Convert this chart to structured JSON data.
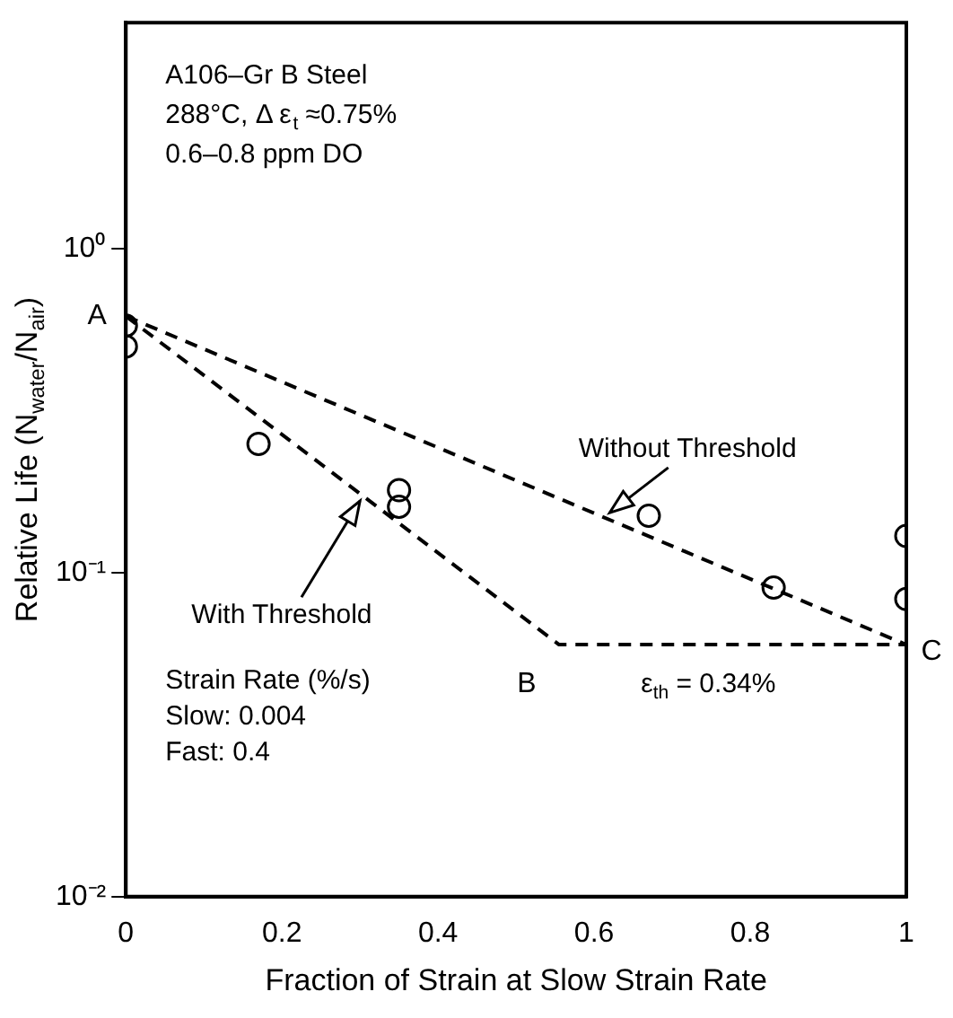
{
  "chart_data": {
    "type": "line",
    "xlabel": "Fraction of Strain at Slow Strain Rate",
    "ylabel": "Relative Life (N$_{water}$/N$_{air}$)",
    "xlim": [
      0,
      1
    ],
    "xticks": [
      0,
      0.2,
      0.4,
      0.6,
      0.8,
      1
    ],
    "ylim": [
      0.01,
      5
    ],
    "yticks": [
      {
        "value": 1,
        "label": "10⁰"
      },
      {
        "value": 0.1,
        "label": "10⁻¹"
      },
      {
        "value": 0.01,
        "label": "10⁻²"
      }
    ],
    "log": "y",
    "grid": false,
    "legend": false,
    "series": [
      {
        "name": "Without Threshold",
        "color": "#000000",
        "x": [
          0,
          1
        ],
        "values": [
          0.62,
          0.06
        ],
        "line_style": "dashed",
        "marker": "none"
      },
      {
        "name": "With Threshold",
        "color": "#000000",
        "x": [
          0,
          0.555,
          1
        ],
        "values": [
          0.62,
          0.06,
          0.06
        ],
        "line_style": "dashed",
        "marker": "none"
      },
      {
        "type": "scatter",
        "color": "#000000",
        "x": [
          0,
          0,
          0.17,
          0.35,
          0.35,
          0.67,
          0.83,
          1,
          1
        ],
        "values": [
          0.58,
          0.5,
          0.25,
          0.18,
          0.16,
          0.15,
          0.09,
          0.13,
          0.083
        ],
        "marker": "circle"
      }
    ],
    "annotations": [
      "A106–Gr B Steel",
      "288°C, Δ ε$_{t}$ ≈0.75%",
      "0.6–0.8 ppm DO",
      "ε$_{th}$ = 0.34%",
      "Strain Rate (%/s)",
      "Slow: 0.004",
      "Fast: 0.4",
      {
        "text": "A",
        "x": 0,
        "y": 0.62
      },
      {
        "text": "B",
        "x": 0.555,
        "y": 0.06
      },
      {
        "text": "C",
        "x": 1,
        "y": 0.06
      }
    ]
  }
}
